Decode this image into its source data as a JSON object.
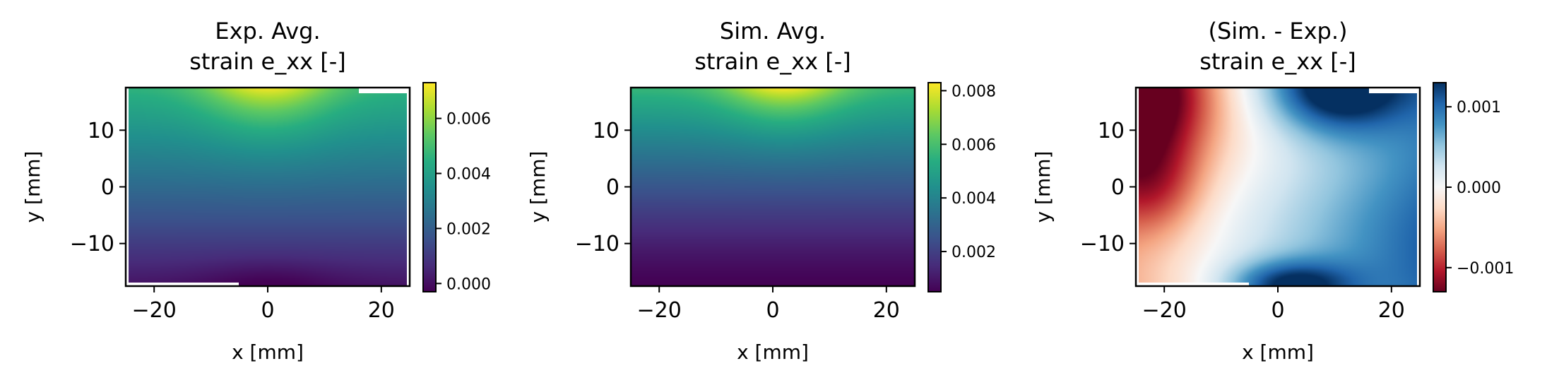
{
  "chart_data": [
    {
      "type": "heatmap",
      "title": "Exp. Avg.\nstrain e_xx [-]",
      "xlabel": "x [mm]",
      "ylabel": "y [mm]",
      "xlim": [
        -25,
        25
      ],
      "ylim": [
        -17.5,
        17.5
      ],
      "xticks": [
        -20,
        0,
        20
      ],
      "xtick_labels": [
        "−20",
        "0",
        "20"
      ],
      "yticks": [
        -10,
        0,
        10
      ],
      "ytick_labels": [
        "−10",
        "0",
        "10"
      ],
      "colormap": "viridis",
      "colorbar": {
        "range": [
          -0.0003,
          0.0073
        ],
        "ticks": [
          0.0,
          0.002,
          0.004,
          0.006
        ],
        "tick_labels": [
          "0.000",
          "0.002",
          "0.004",
          "0.006"
        ]
      },
      "field": {
        "top_center_value": 0.0072,
        "bottom_center_value": -0.0003,
        "top_right_value": 0.0048,
        "bottom_left_value": 0.0003
      }
    },
    {
      "type": "heatmap",
      "title": "Sim. Avg.\nstrain e_xx [-]",
      "xlabel": "x [mm]",
      "ylabel": "y [mm]",
      "xlim": [
        -25,
        25
      ],
      "ylim": [
        -17.5,
        17.5
      ],
      "xticks": [
        -20,
        0,
        20
      ],
      "xtick_labels": [
        "−20",
        "0",
        "20"
      ],
      "yticks": [
        -10,
        0,
        10
      ],
      "ytick_labels": [
        "−10",
        "0",
        "10"
      ],
      "colormap": "viridis",
      "colorbar": {
        "range": [
          0.0005,
          0.0083
        ],
        "ticks": [
          0.002,
          0.004,
          0.006,
          0.008
        ],
        "tick_labels": [
          "0.002",
          "0.004",
          "0.006",
          "0.008"
        ]
      },
      "field": {
        "top_center_value": 0.0083,
        "bottom_center_value": 0.0005,
        "top_right_value": 0.0055,
        "bottom_left_value": 0.0005
      }
    },
    {
      "type": "heatmap",
      "title": "(Sim. - Exp.)\nstrain e_xx [-]",
      "xlabel": "x [mm]",
      "ylabel": "y [mm]",
      "xlim": [
        -25,
        25
      ],
      "ylim": [
        -17.5,
        17.5
      ],
      "xticks": [
        -20,
        0,
        20
      ],
      "xtick_labels": [
        "−20",
        "0",
        "20"
      ],
      "yticks": [
        -10,
        0,
        10
      ],
      "ytick_labels": [
        "−10",
        "0",
        "10"
      ],
      "colormap": "RdBu",
      "colorbar": {
        "range": [
          -0.0013,
          0.0013
        ],
        "ticks": [
          -0.001,
          0.0,
          0.001
        ],
        "tick_labels": [
          "−0.001",
          "0.000",
          "0.001"
        ]
      },
      "field": {
        "top_left_value": -0.0013,
        "top_right_value": 0.0012,
        "bottom_center_value": 0.0011,
        "left_center_value": -0.0006
      }
    }
  ]
}
